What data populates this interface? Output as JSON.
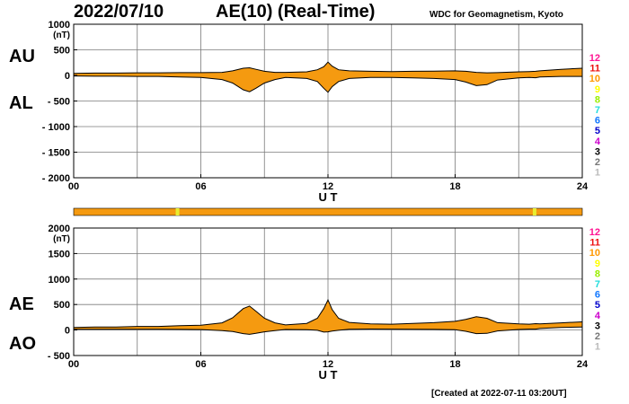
{
  "header": {
    "date": "2022/07/10",
    "title": "AE(10) (Real-Time)",
    "source": "WDC for Geomagnetism, Kyoto"
  },
  "footer": {
    "created": "[Created at 2022-07-11 03:20UT]"
  },
  "colors": {
    "fill": "#f59a10",
    "line": "#000000",
    "grid": "#7a7a7a",
    "bar": "#f59a10",
    "bar_highlight": "#e8ee30"
  },
  "count_legend": {
    "labels": [
      "12",
      "11",
      "10",
      "9",
      "8",
      "7",
      "6",
      "5",
      "4",
      "3",
      "2",
      "1"
    ],
    "colors": [
      "#ff1493",
      "#ee1111",
      "#ff9900",
      "#ffff00",
      "#99ee00",
      "#22dddd",
      "#1177ff",
      "#0000cc",
      "#cc00cc",
      "#000000",
      "#777777",
      "#bbbbbb"
    ]
  },
  "station_bar": {
    "highlight_hours": [
      4.9,
      21.75
    ],
    "note": "highlighted segments show lower station count"
  },
  "chart_data": [
    {
      "type": "area",
      "name": "AU/AL",
      "ylabel": "(nT)",
      "xlabel": "U T",
      "xlim": [
        0,
        24
      ],
      "ylim": [
        -2000,
        1000
      ],
      "yticks": [
        1000,
        500,
        0,
        -500,
        -1000,
        -1500,
        -2000
      ],
      "ytick_labels": [
        "1000",
        "500",
        "0",
        "- 500",
        "- 1000",
        "- 1500",
        "- 2000"
      ],
      "xticks": [
        0,
        6,
        12,
        18,
        24
      ],
      "xtick_labels": [
        "00",
        "06",
        "12",
        "18",
        "24"
      ],
      "upper_label": "AU",
      "lower_label": "AL",
      "x": [
        0,
        1,
        2,
        3,
        4,
        5,
        6,
        7,
        7.5,
        8,
        8.3,
        8.6,
        9,
        9.5,
        10,
        11,
        11.5,
        11.8,
        12,
        12.2,
        12.5,
        13,
        14,
        15,
        16,
        17,
        18,
        18.5,
        19,
        19.5,
        20,
        21,
        21.5,
        21.8,
        22,
        23,
        24
      ],
      "upper": [
        40,
        45,
        45,
        50,
        50,
        55,
        55,
        60,
        90,
        140,
        150,
        120,
        80,
        60,
        60,
        70,
        110,
        170,
        260,
        180,
        110,
        90,
        80,
        75,
        80,
        85,
        90,
        80,
        60,
        50,
        55,
        70,
        75,
        80,
        90,
        120,
        140
      ],
      "lower": [
        -10,
        -15,
        -15,
        -20,
        -20,
        -30,
        -40,
        -80,
        -150,
        -280,
        -320,
        -250,
        -150,
        -80,
        -40,
        -60,
        -120,
        -250,
        -330,
        -220,
        -120,
        -60,
        -40,
        -40,
        -50,
        -60,
        -80,
        -130,
        -200,
        -180,
        -90,
        -50,
        -40,
        -45,
        -30,
        -20,
        -20
      ]
    },
    {
      "type": "area",
      "name": "AE/AO",
      "ylabel": "(nT)",
      "xlabel": "U T",
      "xlim": [
        0,
        24
      ],
      "ylim": [
        -500,
        2000
      ],
      "yticks": [
        2000,
        1500,
        1000,
        500,
        0,
        -500
      ],
      "ytick_labels": [
        "2000",
        "1500",
        "1000",
        "500",
        "0",
        "- 500"
      ],
      "xticks": [
        0,
        6,
        12,
        18,
        24
      ],
      "xtick_labels": [
        "00",
        "06",
        "12",
        "18",
        "24"
      ],
      "upper_label": "AE",
      "lower_label": "AO",
      "x": [
        0,
        1,
        2,
        3,
        4,
        5,
        6,
        7,
        7.5,
        8,
        8.3,
        8.6,
        9,
        9.5,
        10,
        11,
        11.5,
        11.8,
        12,
        12.2,
        12.5,
        13,
        14,
        15,
        16,
        17,
        18,
        18.5,
        19,
        19.5,
        20,
        21,
        21.5,
        21.8,
        22,
        23,
        24
      ],
      "upper": [
        50,
        60,
        60,
        70,
        70,
        85,
        95,
        140,
        240,
        420,
        470,
        370,
        230,
        140,
        100,
        130,
        230,
        420,
        590,
        400,
        230,
        150,
        120,
        115,
        130,
        145,
        170,
        210,
        260,
        230,
        145,
        120,
        115,
        125,
        120,
        140,
        160
      ],
      "lower": [
        15,
        15,
        15,
        15,
        15,
        12,
        8,
        -10,
        -30,
        -70,
        -85,
        -65,
        -35,
        -10,
        10,
        5,
        -5,
        -40,
        -35,
        -20,
        -5,
        15,
        20,
        18,
        15,
        12,
        5,
        -25,
        -70,
        -65,
        -18,
        10,
        18,
        18,
        30,
        50,
        60
      ]
    }
  ]
}
